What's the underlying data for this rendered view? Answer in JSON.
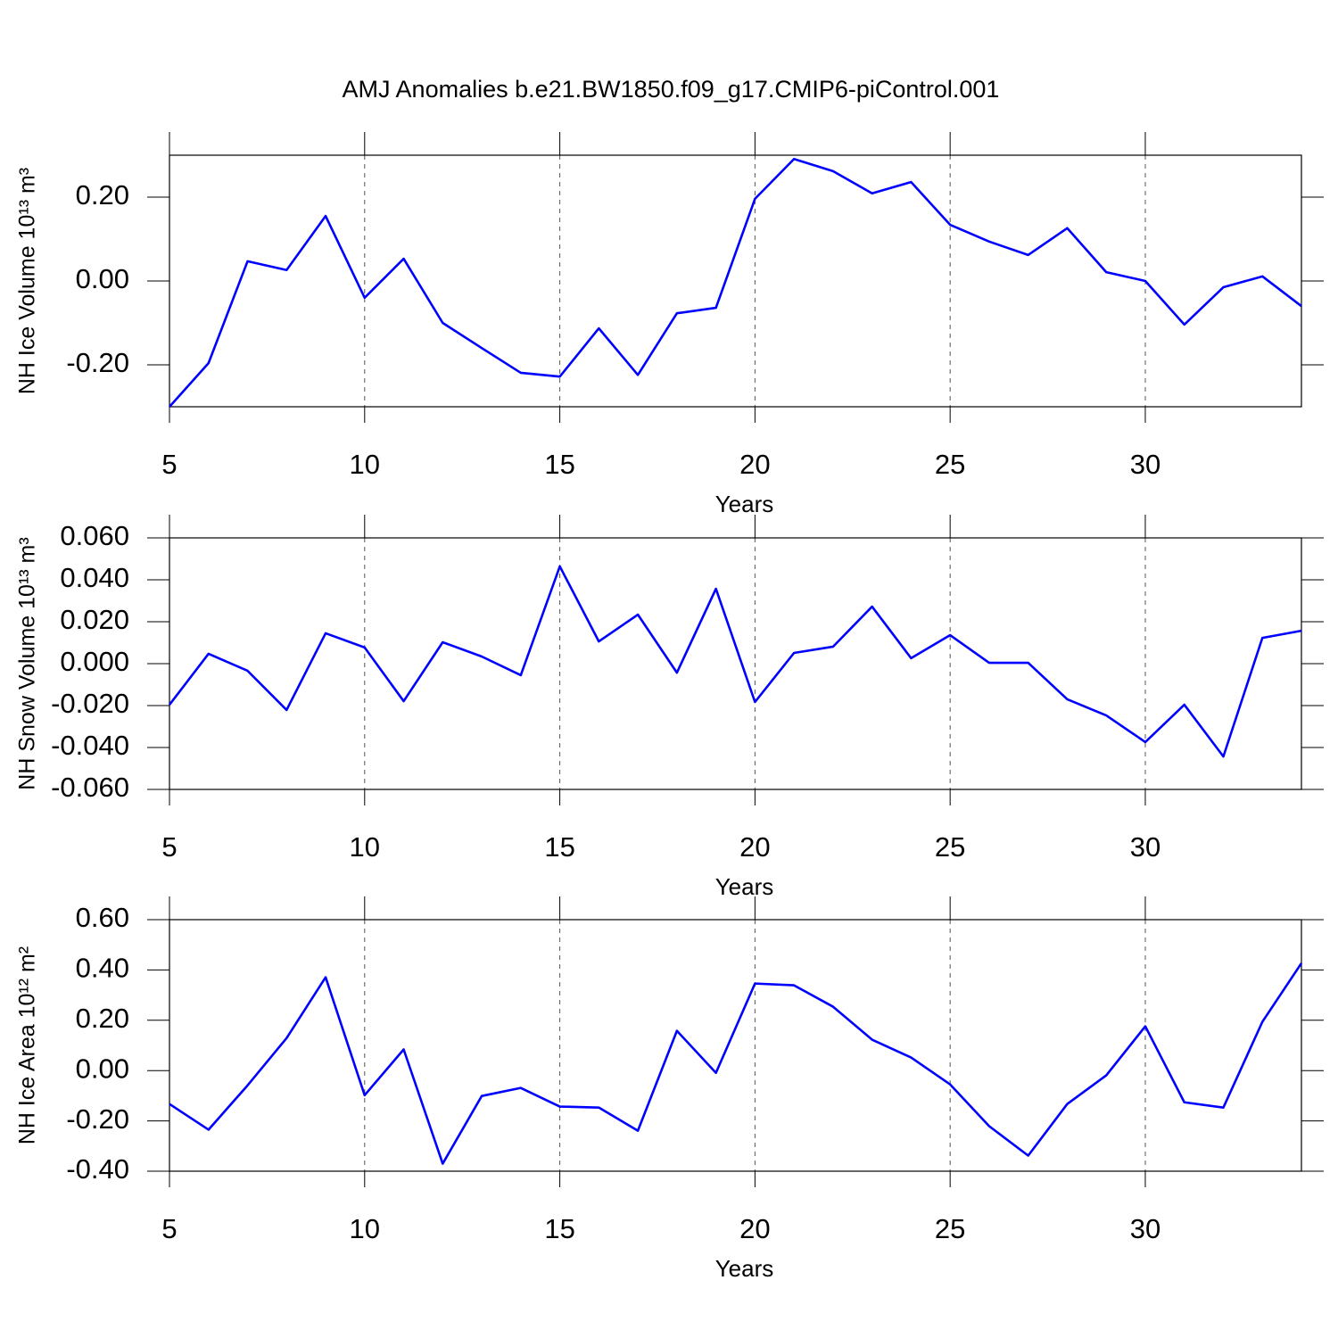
{
  "title": "AMJ Anomalies b.e21.BW1850.f09_g17.CMIP6-piControl.001",
  "chart_data": [
    {
      "type": "line",
      "ylabel": "NH Ice Volume 10¹³ m³",
      "xlabel": "Years",
      "x": [
        5,
        6,
        7,
        8,
        9,
        10,
        11,
        12,
        13,
        14,
        15,
        16,
        17,
        18,
        19,
        20,
        21,
        22,
        23,
        24,
        25,
        26,
        27,
        28,
        29,
        30,
        31,
        32,
        33,
        34
      ],
      "series": [
        {
          "color": "#0000ff",
          "values": [
            -0.3,
            -0.196,
            0.047,
            0.026,
            0.155,
            -0.04,
            0.053,
            -0.1,
            -0.16,
            -0.219,
            -0.228,
            -0.113,
            -0.224,
            -0.077,
            -0.064,
            0.196,
            0.291,
            0.262,
            0.209,
            0.236,
            0.134,
            0.094,
            0.062,
            0.126,
            0.021,
            0.0,
            -0.104,
            -0.015,
            0.011,
            -0.06
          ]
        }
      ],
      "xlim": [
        5,
        34
      ],
      "xticks": [
        5,
        10,
        15,
        20,
        25,
        30
      ],
      "ylim": [
        -0.3,
        0.3
      ],
      "yticks": [
        {
          "value": -0.2,
          "label": "-0.20"
        },
        {
          "value": 0,
          "label": "0.00"
        },
        {
          "value": 0.2,
          "label": "0.20"
        }
      ],
      "grid": "x"
    },
    {
      "type": "line",
      "ylabel": "NH Snow Volume 10¹³ m³",
      "xlabel": "Years",
      "x": [
        5,
        6,
        7,
        8,
        9,
        10,
        11,
        12,
        13,
        14,
        15,
        16,
        17,
        18,
        19,
        20,
        21,
        22,
        23,
        24,
        25,
        26,
        27,
        28,
        29,
        30,
        31,
        32,
        33,
        34
      ],
      "series": [
        {
          "color": "#0000ff",
          "values": [
            -0.0196,
            0.0047,
            -0.0034,
            -0.0221,
            0.0145,
            0.0077,
            -0.0179,
            0.0102,
            0.0034,
            -0.0055,
            0.0464,
            0.0106,
            0.0234,
            -0.0043,
            0.0357,
            -0.0183,
            0.0051,
            0.0081,
            0.0272,
            0.0026,
            0.0136,
            0.0004,
            0.0004,
            -0.017,
            -0.0247,
            -0.0374,
            -0.0196,
            -0.0443,
            0.0123,
            0.0157
          ]
        }
      ],
      "xlim": [
        5,
        34
      ],
      "xticks": [
        5,
        10,
        15,
        20,
        25,
        30
      ],
      "ylim": [
        -0.06,
        0.06
      ],
      "yticks": [
        {
          "value": -0.06,
          "label": "-0.060"
        },
        {
          "value": -0.04,
          "label": "-0.040"
        },
        {
          "value": -0.02,
          "label": "-0.020"
        },
        {
          "value": 0,
          "label": "0.000"
        },
        {
          "value": 0.02,
          "label": "0.020"
        },
        {
          "value": 0.04,
          "label": "0.040"
        },
        {
          "value": 0.06,
          "label": "0.060"
        }
      ],
      "grid": "x"
    },
    {
      "type": "line",
      "ylabel": "NH Ice Area 10¹² m²",
      "xlabel": "Years",
      "x": [
        5,
        6,
        7,
        8,
        9,
        10,
        11,
        12,
        13,
        14,
        15,
        16,
        17,
        18,
        19,
        20,
        21,
        22,
        23,
        24,
        25,
        26,
        27,
        28,
        29,
        30,
        31,
        32,
        33,
        34
      ],
      "series": [
        {
          "color": "#0000ff",
          "values": [
            -0.133,
            -0.235,
            -0.059,
            0.129,
            0.371,
            -0.098,
            0.084,
            -0.37,
            -0.101,
            -0.069,
            -0.143,
            -0.147,
            -0.239,
            0.158,
            -0.009,
            0.346,
            0.339,
            0.254,
            0.123,
            0.052,
            -0.055,
            -0.221,
            -0.338,
            -0.133,
            -0.019,
            0.176,
            -0.126,
            -0.147,
            0.194,
            0.427
          ]
        }
      ],
      "xlim": [
        5,
        34
      ],
      "xticks": [
        5,
        10,
        15,
        20,
        25,
        30
      ],
      "ylim": [
        -0.4,
        0.6
      ],
      "yticks": [
        {
          "value": -0.4,
          "label": "-0.40"
        },
        {
          "value": -0.2,
          "label": "-0.20"
        },
        {
          "value": 0,
          "label": "0.00"
        },
        {
          "value": 0.2,
          "label": "0.20"
        },
        {
          "value": 0.4,
          "label": "0.40"
        },
        {
          "value": 0.6,
          "label": "0.60"
        }
      ],
      "grid": "x"
    }
  ]
}
